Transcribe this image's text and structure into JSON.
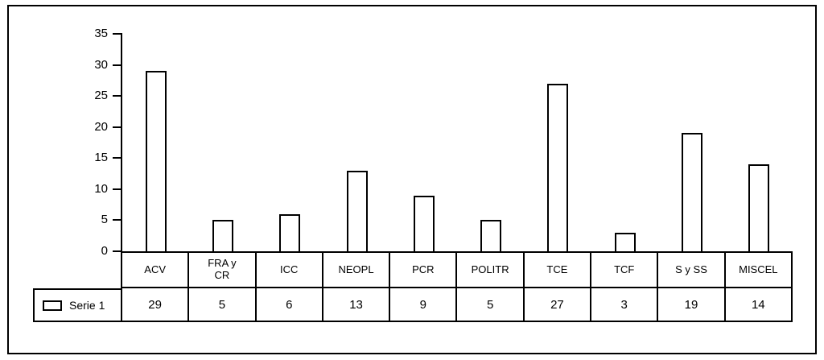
{
  "chart_data": {
    "type": "bar",
    "title": "",
    "categories": [
      "ACV",
      "FRA y CR",
      "ICC",
      "NEOPL",
      "PCR",
      "POLITR",
      "TCE",
      "TCF",
      "S y SS",
      "MISCEL"
    ],
    "categories_display": [
      "ACV",
      "FRA y\nCR",
      "ICC",
      "NEOPL",
      "PCR",
      "POLITR",
      "TCE",
      "TCF",
      "S y SS",
      "MISCEL"
    ],
    "series": [
      {
        "name": "Serie 1",
        "values": [
          29,
          5,
          6,
          13,
          9,
          5,
          27,
          3,
          19,
          14
        ]
      }
    ],
    "legend_label": "Serie 1",
    "legend_position": "bottom-left",
    "xlabel": "",
    "ylabel": "",
    "ylim": [
      0,
      35
    ],
    "yticks": [
      0,
      5,
      10,
      15,
      20,
      25,
      30,
      35
    ],
    "grid": false,
    "bar_fill": "#ffffff",
    "bar_border": "#000000",
    "axis_color": "#000000",
    "data_table_shown": true
  }
}
